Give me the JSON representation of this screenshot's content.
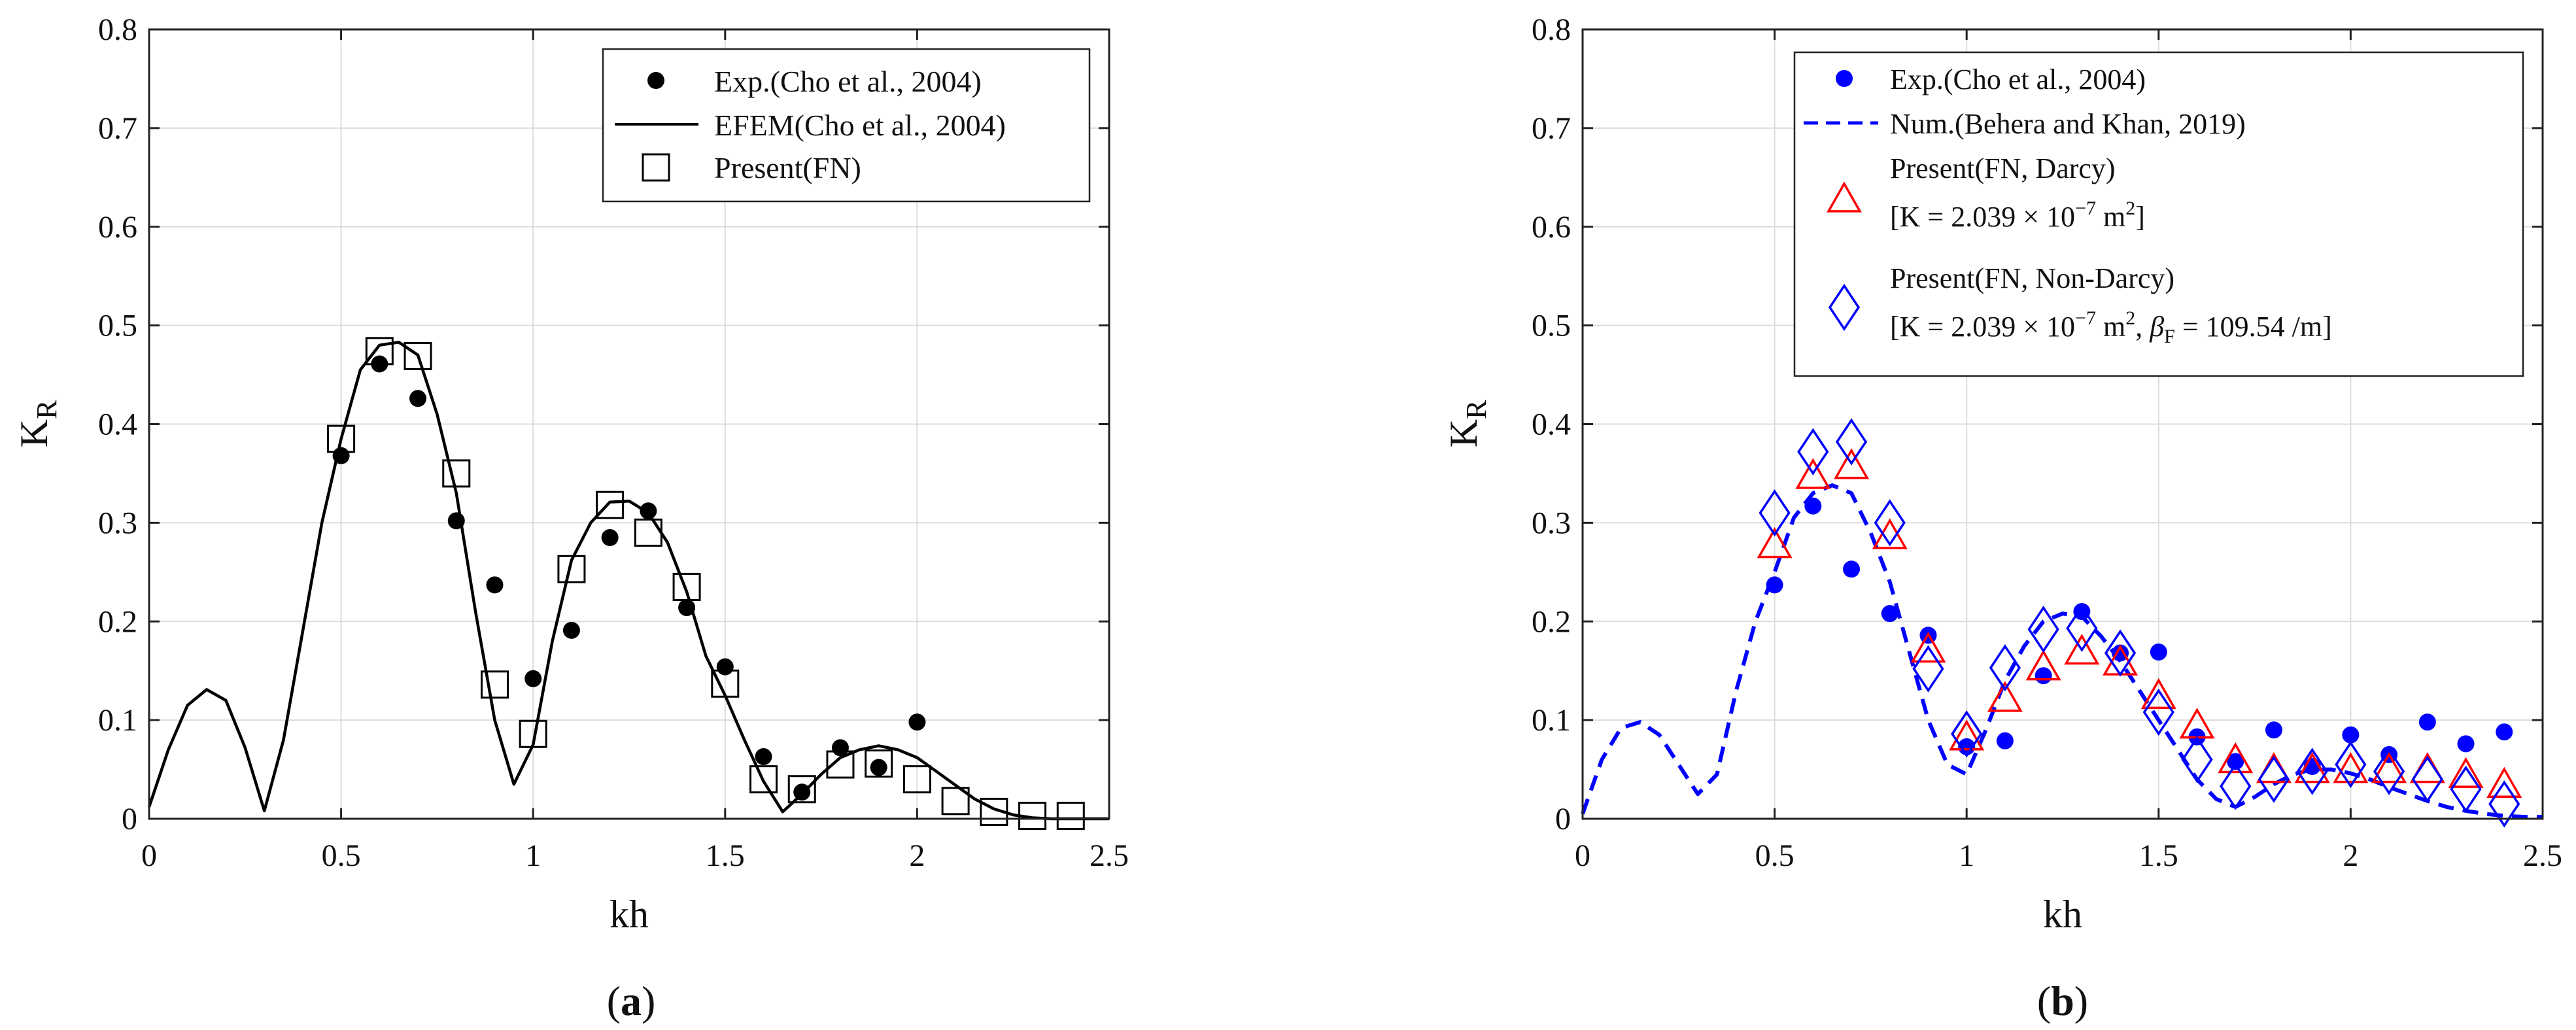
{
  "chart_data": [
    {
      "id": "a",
      "type": "line",
      "panel_label_prefix": "(",
      "panel_label_letter": "a",
      "panel_label_suffix": ")",
      "xlabel": "kh",
      "ylabel_main": "K",
      "ylabel_sub": "R",
      "xlim": [
        0,
        2.5
      ],
      "ylim": [
        0,
        0.8
      ],
      "xticks": [
        "0",
        "0.5",
        "1",
        "1.5",
        "2",
        "2.5"
      ],
      "yticks": [
        "0",
        "0.1",
        "0.2",
        "0.3",
        "0.4",
        "0.5",
        "0.6",
        "0.7",
        "0.8"
      ],
      "grid": true,
      "legend_position": "top-right",
      "series": [
        {
          "name": "Exp.(Cho et al., 2004)",
          "style": "filled-circle",
          "color": "#000000",
          "x": [
            0.5,
            0.6,
            0.7,
            0.8,
            0.9,
            1.0,
            1.1,
            1.2,
            1.3,
            1.4,
            1.5,
            1.6,
            1.7,
            1.8,
            1.9,
            2.0
          ],
          "y": [
            0.368,
            0.461,
            0.426,
            0.302,
            0.237,
            0.142,
            0.191,
            0.285,
            0.312,
            0.214,
            0.154,
            0.063,
            0.027,
            0.072,
            0.052,
            0.098
          ]
        },
        {
          "name": "EFEM(Cho et al., 2004)",
          "style": "solid-line",
          "color": "#000000",
          "x": [
            0,
            0.05,
            0.1,
            0.15,
            0.2,
            0.25,
            0.3,
            0.35,
            0.4,
            0.45,
            0.5,
            0.55,
            0.6,
            0.65,
            0.7,
            0.75,
            0.8,
            0.85,
            0.9,
            0.95,
            1.0,
            1.05,
            1.1,
            1.15,
            1.2,
            1.25,
            1.3,
            1.35,
            1.4,
            1.45,
            1.5,
            1.55,
            1.6,
            1.65,
            1.7,
            1.75,
            1.8,
            1.85,
            1.9,
            1.95,
            2.0,
            2.05,
            2.1,
            2.15,
            2.2,
            2.25,
            2.3,
            2.35,
            2.4,
            2.45,
            2.5
          ],
          "y": [
            0.012,
            0.07,
            0.115,
            0.131,
            0.12,
            0.072,
            0.008,
            0.08,
            0.19,
            0.3,
            0.385,
            0.455,
            0.48,
            0.483,
            0.47,
            0.41,
            0.33,
            0.21,
            0.1,
            0.035,
            0.075,
            0.18,
            0.262,
            0.3,
            0.321,
            0.322,
            0.31,
            0.28,
            0.23,
            0.165,
            0.125,
            0.08,
            0.038,
            0.007,
            0.025,
            0.045,
            0.062,
            0.07,
            0.074,
            0.07,
            0.062,
            0.048,
            0.034,
            0.02,
            0.01,
            0.004,
            0.001,
            0.0,
            0.0,
            0.0,
            0.0
          ]
        },
        {
          "name": "Present(FN)",
          "style": "open-square",
          "color": "#000000",
          "x": [
            0.5,
            0.6,
            0.7,
            0.8,
            0.9,
            1.0,
            1.1,
            1.2,
            1.3,
            1.4,
            1.5,
            1.6,
            1.7,
            1.8,
            1.9,
            2.0,
            2.1,
            2.2,
            2.3,
            2.4
          ],
          "y": [
            0.385,
            0.474,
            0.469,
            0.35,
            0.136,
            0.086,
            0.253,
            0.318,
            0.29,
            0.235,
            0.137,
            0.04,
            0.03,
            0.055,
            0.056,
            0.04,
            0.018,
            0.007,
            0.003,
            0.003
          ]
        }
      ]
    },
    {
      "id": "b",
      "type": "line",
      "panel_label_prefix": "(",
      "panel_label_letter": "b",
      "panel_label_suffix": ")",
      "xlabel": "kh",
      "ylabel_main": "K",
      "ylabel_sub": "R",
      "xlim": [
        0,
        2.5
      ],
      "ylim": [
        0,
        0.8
      ],
      "xticks": [
        "0",
        "0.5",
        "1",
        "1.5",
        "2",
        "2.5"
      ],
      "yticks": [
        "0",
        "0.1",
        "0.2",
        "0.3",
        "0.4",
        "0.5",
        "0.6",
        "0.7",
        "0.8"
      ],
      "grid": true,
      "legend_position": "top-right",
      "series": [
        {
          "name": "Exp.(Cho et al., 2004)",
          "style": "filled-circle",
          "color": "#0000ff",
          "x": [
            0.5,
            0.6,
            0.7,
            0.8,
            0.9,
            1.0,
            1.1,
            1.2,
            1.3,
            1.4,
            1.5,
            1.6,
            1.7,
            1.8,
            1.9,
            2.0,
            2.1,
            2.2,
            2.3,
            2.4
          ],
          "y": [
            0.237,
            0.317,
            0.253,
            0.208,
            0.186,
            0.073,
            0.079,
            0.145,
            0.21,
            0.168,
            0.169,
            0.083,
            0.058,
            0.09,
            0.053,
            0.085,
            0.065,
            0.098,
            0.076,
            0.088
          ]
        },
        {
          "name": "Num.(Behera and Khan, 2019)",
          "style": "dashed-line",
          "color": "#0000ff",
          "x": [
            0,
            0.05,
            0.1,
            0.15,
            0.2,
            0.25,
            0.3,
            0.35,
            0.4,
            0.45,
            0.5,
            0.55,
            0.6,
            0.65,
            0.7,
            0.75,
            0.8,
            0.85,
            0.9,
            0.95,
            1.0,
            1.05,
            1.1,
            1.15,
            1.2,
            1.25,
            1.3,
            1.35,
            1.4,
            1.45,
            1.5,
            1.55,
            1.6,
            1.65,
            1.7,
            1.75,
            1.8,
            1.85,
            1.9,
            1.95,
            2.0,
            2.05,
            2.1,
            2.15,
            2.2,
            2.25,
            2.3,
            2.35,
            2.4,
            2.45,
            2.5
          ],
          "y": [
            0.005,
            0.06,
            0.092,
            0.098,
            0.085,
            0.055,
            0.025,
            0.045,
            0.13,
            0.2,
            0.25,
            0.305,
            0.33,
            0.338,
            0.33,
            0.29,
            0.24,
            0.17,
            0.1,
            0.055,
            0.045,
            0.09,
            0.14,
            0.175,
            0.2,
            0.208,
            0.205,
            0.185,
            0.16,
            0.13,
            0.1,
            0.07,
            0.04,
            0.02,
            0.012,
            0.022,
            0.035,
            0.045,
            0.05,
            0.05,
            0.046,
            0.04,
            0.032,
            0.025,
            0.018,
            0.012,
            0.008,
            0.005,
            0.003,
            0.002,
            0.002
          ]
        },
        {
          "name": "Present(FN, Darcy)",
          "name_line2": "[K = 2.039 × 10",
          "name_line2_exp": "−7",
          "name_line2_unit": " m",
          "name_line2_unit_exp": "2",
          "name_line2_end": "]",
          "style": "open-triangle",
          "color": "#ff0000",
          "x": [
            0.5,
            0.6,
            0.7,
            0.8,
            0.9,
            1.0,
            1.1,
            1.2,
            1.3,
            1.4,
            1.5,
            1.6,
            1.7,
            1.8,
            1.9,
            2.0,
            2.1,
            2.2,
            2.3,
            2.4
          ],
          "y": [
            0.278,
            0.348,
            0.358,
            0.287,
            0.172,
            0.083,
            0.122,
            0.154,
            0.17,
            0.159,
            0.125,
            0.095,
            0.06,
            0.05,
            0.05,
            0.05,
            0.05,
            0.05,
            0.045,
            0.035
          ]
        },
        {
          "name": "Present(FN, Non-Darcy)",
          "name_line2": "[K = 2.039 × 10",
          "name_line2_exp": "−7",
          "name_line2_unit": " m",
          "name_line2_unit_exp": "2",
          "name_line2_mid": ", ",
          "name_line2_beta": "β",
          "name_line2_beta_sub": "F",
          "name_line2_end": " = 109.54 /m]",
          "style": "open-diamond",
          "color": "#0000ff",
          "x": [
            0.5,
            0.6,
            0.7,
            0.8,
            0.9,
            1.0,
            1.1,
            1.2,
            1.3,
            1.4,
            1.5,
            1.6,
            1.7,
            1.8,
            1.9,
            2.0,
            2.1,
            2.2,
            2.3,
            2.4
          ],
          "y": [
            0.31,
            0.372,
            0.382,
            0.3,
            0.152,
            0.086,
            0.153,
            0.192,
            0.193,
            0.168,
            0.108,
            0.06,
            0.033,
            0.04,
            0.048,
            0.055,
            0.048,
            0.04,
            0.03,
            0.015
          ]
        }
      ]
    }
  ]
}
